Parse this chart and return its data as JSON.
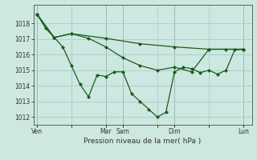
{
  "background_color": "#cce8e0",
  "grid_color": "#aacccc",
  "line_color": "#1a5c1a",
  "marker_color": "#1a5c1a",
  "xlabel": "Pression niveau de la mer( hPa )",
  "ylim": [
    1011.5,
    1019.2
  ],
  "yticks": [
    1012,
    1013,
    1014,
    1015,
    1016,
    1017,
    1018
  ],
  "xtick_labels": [
    "Ven",
    "",
    "Mar",
    "Sam",
    "",
    "Dim",
    "",
    "Lun"
  ],
  "xtick_positions": [
    0,
    48,
    96,
    120,
    168,
    192,
    240,
    288
  ],
  "xlim": [
    -5,
    300
  ],
  "series1_x": [
    0,
    24,
    48,
    96,
    144,
    192,
    240,
    288
  ],
  "series1_y": [
    1018.6,
    1017.1,
    1017.35,
    1017.05,
    1016.7,
    1016.5,
    1016.35,
    1016.35
  ],
  "series2_x": [
    0,
    24,
    48,
    72,
    96,
    120,
    144,
    168,
    192,
    216,
    240,
    264,
    288
  ],
  "series2_y": [
    1018.6,
    1017.1,
    1017.35,
    1017.05,
    1016.5,
    1015.8,
    1015.3,
    1015.0,
    1015.2,
    1014.9,
    1016.35,
    1016.35,
    1016.35
  ],
  "series3_x": [
    0,
    12,
    24,
    36,
    48,
    60,
    72,
    84,
    96,
    108,
    120,
    132,
    144,
    156,
    168,
    180,
    192,
    204,
    216,
    228,
    240,
    252,
    264,
    276,
    288
  ],
  "series3_y": [
    1018.6,
    1017.7,
    1017.1,
    1016.5,
    1015.3,
    1014.1,
    1013.3,
    1014.7,
    1014.6,
    1014.9,
    1014.9,
    1013.5,
    1013.0,
    1012.5,
    1012.0,
    1012.3,
    1014.9,
    1015.2,
    1015.1,
    1014.85,
    1015.0,
    1014.75,
    1015.0,
    1016.3,
    1016.35
  ]
}
